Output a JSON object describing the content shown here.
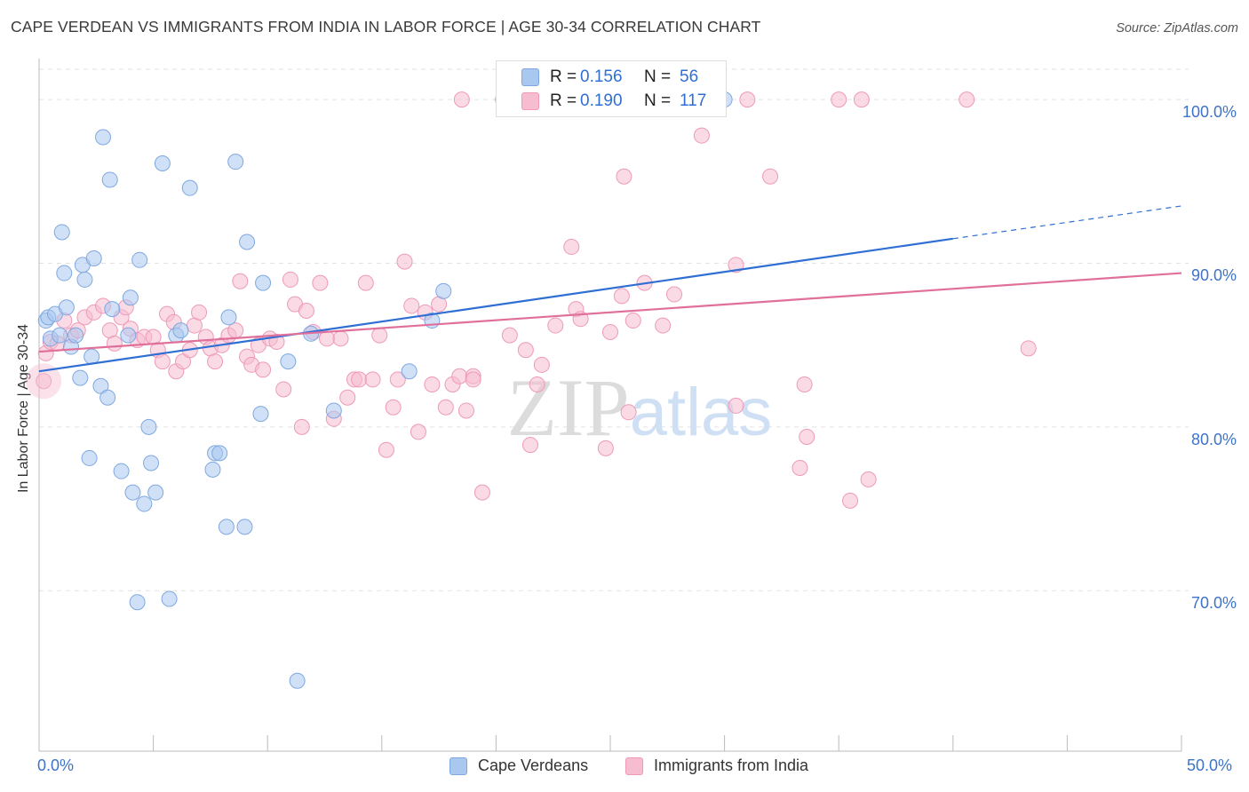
{
  "title": "CAPE VERDEAN VS IMMIGRANTS FROM INDIA IN LABOR FORCE | AGE 30-34 CORRELATION CHART",
  "source": "Source: ZipAtlas.com",
  "watermark": "ZIPatlas",
  "colors": {
    "blue_fill": "#a9c8f0",
    "blue_stroke": "#7fa8e0",
    "blue_line": "#2f6fd4",
    "pink_fill": "#f6bcd0",
    "pink_stroke": "#ee9ab8",
    "pink_line": "#e0709a",
    "tick_text": "#3d73c9",
    "grid": "#e2e2e2"
  },
  "legend_top": {
    "rows": [
      {
        "r_label": "R =",
        "r_value": "0.156",
        "n_label": "N =",
        "n_value": "56"
      },
      {
        "r_label": "R =",
        "r_value": "0.190",
        "n_label": "N =",
        "n_value": "117"
      }
    ]
  },
  "legend_bottom": [
    "Cape Verdeans",
    "Immigrants from India"
  ],
  "chart_data": {
    "type": "scatter",
    "title": "CAPE VERDEAN VS IMMIGRANTS FROM INDIA IN LABOR FORCE | AGE 30-34 CORRELATION CHART",
    "xlabel": "",
    "ylabel": "In Labor Force | Age 30-34",
    "xlim": [
      0,
      50
    ],
    "ylim": [
      60.2,
      102.5
    ],
    "x_tick_labels": [
      "0.0%",
      "50.0%"
    ],
    "y_ticks": [
      70,
      80,
      90,
      100
    ],
    "y_tick_labels": [
      "70.0%",
      "80.0%",
      "90.0%",
      "100.0%"
    ],
    "grid": true,
    "series": [
      {
        "name": "Cape Verdeans",
        "R": 0.156,
        "N": 56,
        "trend": {
          "x0": 0,
          "y0": 83.4,
          "x1": 40,
          "y1": 91.5,
          "dashed_to_x": 50,
          "dashed_to_y": 93.5
        },
        "points": [
          [
            0.3,
            86.5
          ],
          [
            0.4,
            86.7
          ],
          [
            0.5,
            85.4
          ],
          [
            0.7,
            86.9
          ],
          [
            0.9,
            85.6
          ],
          [
            1.0,
            91.9
          ],
          [
            1.1,
            89.4
          ],
          [
            1.2,
            87.3
          ],
          [
            1.4,
            84.9
          ],
          [
            1.6,
            85.6
          ],
          [
            1.8,
            83.0
          ],
          [
            1.9,
            89.9
          ],
          [
            2.0,
            89.0
          ],
          [
            2.2,
            78.1
          ],
          [
            2.3,
            84.3
          ],
          [
            2.4,
            90.3
          ],
          [
            2.7,
            82.5
          ],
          [
            2.8,
            97.7
          ],
          [
            3.0,
            81.8
          ],
          [
            3.1,
            95.1
          ],
          [
            3.2,
            87.2
          ],
          [
            3.6,
            77.3
          ],
          [
            3.9,
            85.6
          ],
          [
            4.0,
            87.9
          ],
          [
            4.1,
            76.0
          ],
          [
            4.3,
            69.3
          ],
          [
            4.4,
            90.2
          ],
          [
            4.6,
            75.3
          ],
          [
            4.8,
            80.0
          ],
          [
            4.9,
            77.8
          ],
          [
            5.1,
            76.0
          ],
          [
            5.4,
            96.1
          ],
          [
            5.7,
            69.5
          ],
          [
            6.0,
            85.6
          ],
          [
            6.2,
            85.9
          ],
          [
            6.6,
            94.6
          ],
          [
            7.6,
            77.4
          ],
          [
            7.7,
            78.4
          ],
          [
            7.9,
            78.4
          ],
          [
            8.2,
            73.9
          ],
          [
            8.3,
            86.7
          ],
          [
            8.6,
            96.2
          ],
          [
            9.0,
            73.9
          ],
          [
            9.1,
            91.3
          ],
          [
            9.7,
            80.8
          ],
          [
            9.8,
            88.8
          ],
          [
            10.9,
            84.0
          ],
          [
            11.3,
            64.5
          ],
          [
            11.9,
            85.7
          ],
          [
            12.9,
            81.0
          ],
          [
            16.2,
            83.4
          ],
          [
            17.2,
            86.5
          ],
          [
            17.7,
            88.3
          ],
          [
            30.0,
            100.0
          ]
        ]
      },
      {
        "name": "Immigrants from India",
        "R": 0.19,
        "N": 117,
        "trend": {
          "x0": 0,
          "y0": 84.6,
          "x1": 50,
          "y1": 89.4
        },
        "points": [
          [
            0.3,
            84.5
          ],
          [
            0.5,
            85.2
          ],
          [
            0.8,
            85.1
          ],
          [
            1.1,
            86.5
          ],
          [
            1.4,
            85.6
          ],
          [
            1.7,
            85.9
          ],
          [
            2.0,
            86.7
          ],
          [
            2.4,
            87.0
          ],
          [
            2.8,
            87.4
          ],
          [
            3.1,
            85.9
          ],
          [
            3.3,
            85.1
          ],
          [
            3.6,
            86.7
          ],
          [
            3.8,
            87.3
          ],
          [
            4.0,
            86.0
          ],
          [
            4.3,
            85.3
          ],
          [
            4.6,
            85.5
          ],
          [
            5.0,
            85.5
          ],
          [
            5.2,
            84.7
          ],
          [
            5.4,
            84.0
          ],
          [
            5.6,
            86.9
          ],
          [
            5.9,
            86.4
          ],
          [
            6.0,
            83.4
          ],
          [
            6.3,
            84.0
          ],
          [
            6.6,
            84.7
          ],
          [
            6.8,
            86.2
          ],
          [
            7.0,
            87.0
          ],
          [
            7.3,
            85.5
          ],
          [
            7.5,
            84.8
          ],
          [
            7.7,
            84.0
          ],
          [
            8.0,
            85.0
          ],
          [
            8.3,
            85.6
          ],
          [
            8.6,
            85.9
          ],
          [
            8.8,
            88.9
          ],
          [
            9.1,
            84.3
          ],
          [
            9.3,
            83.8
          ],
          [
            9.6,
            85.0
          ],
          [
            9.8,
            83.5
          ],
          [
            10.1,
            85.4
          ],
          [
            10.4,
            85.2
          ],
          [
            10.7,
            82.3
          ],
          [
            11.0,
            89.0
          ],
          [
            11.2,
            87.5
          ],
          [
            11.5,
            80.0
          ],
          [
            11.7,
            87.1
          ],
          [
            12.0,
            85.8
          ],
          [
            12.3,
            88.8
          ],
          [
            12.6,
            85.4
          ],
          [
            12.9,
            80.5
          ],
          [
            13.2,
            85.4
          ],
          [
            13.5,
            81.8
          ],
          [
            13.8,
            82.9
          ],
          [
            14.0,
            82.9
          ],
          [
            14.3,
            88.8
          ],
          [
            14.6,
            82.9
          ],
          [
            14.9,
            85.6
          ],
          [
            15.2,
            78.6
          ],
          [
            15.5,
            81.2
          ],
          [
            15.7,
            82.9
          ],
          [
            16.0,
            90.1
          ],
          [
            16.3,
            87.4
          ],
          [
            16.6,
            79.7
          ],
          [
            16.9,
            87.0
          ],
          [
            17.2,
            82.6
          ],
          [
            17.5,
            87.5
          ],
          [
            17.8,
            81.2
          ],
          [
            18.1,
            82.6
          ],
          [
            18.4,
            83.1
          ],
          [
            18.7,
            81.0
          ],
          [
            19.0,
            83.1
          ],
          [
            19.4,
            76.0
          ],
          [
            19.0,
            82.9
          ],
          [
            18.5,
            100.0
          ],
          [
            20.3,
            100.0
          ],
          [
            20.6,
            85.6
          ],
          [
            21.3,
            84.7
          ],
          [
            21.5,
            78.9
          ],
          [
            21.8,
            82.6
          ],
          [
            22.0,
            83.8
          ],
          [
            22.6,
            86.2
          ],
          [
            23.0,
            100.0
          ],
          [
            23.3,
            91.0
          ],
          [
            23.5,
            87.2
          ],
          [
            23.7,
            86.6
          ],
          [
            24.8,
            78.7
          ],
          [
            25.0,
            85.8
          ],
          [
            25.5,
            88.0
          ],
          [
            25.8,
            80.9
          ],
          [
            25.6,
            95.3
          ],
          [
            26.0,
            86.5
          ],
          [
            26.5,
            88.8
          ],
          [
            27.3,
            86.2
          ],
          [
            27.8,
            88.1
          ],
          [
            29.0,
            97.8
          ],
          [
            30.5,
            89.9
          ],
          [
            30.5,
            81.3
          ],
          [
            31.0,
            100.0
          ],
          [
            32.0,
            95.3
          ],
          [
            33.3,
            77.5
          ],
          [
            33.5,
            82.6
          ],
          [
            33.6,
            79.4
          ],
          [
            35.0,
            100.0
          ],
          [
            35.5,
            75.5
          ],
          [
            36.0,
            100.0
          ],
          [
            36.3,
            76.8
          ],
          [
            40.6,
            100.0
          ],
          [
            43.3,
            84.8
          ],
          [
            0.2,
            82.8
          ]
        ]
      }
    ]
  }
}
